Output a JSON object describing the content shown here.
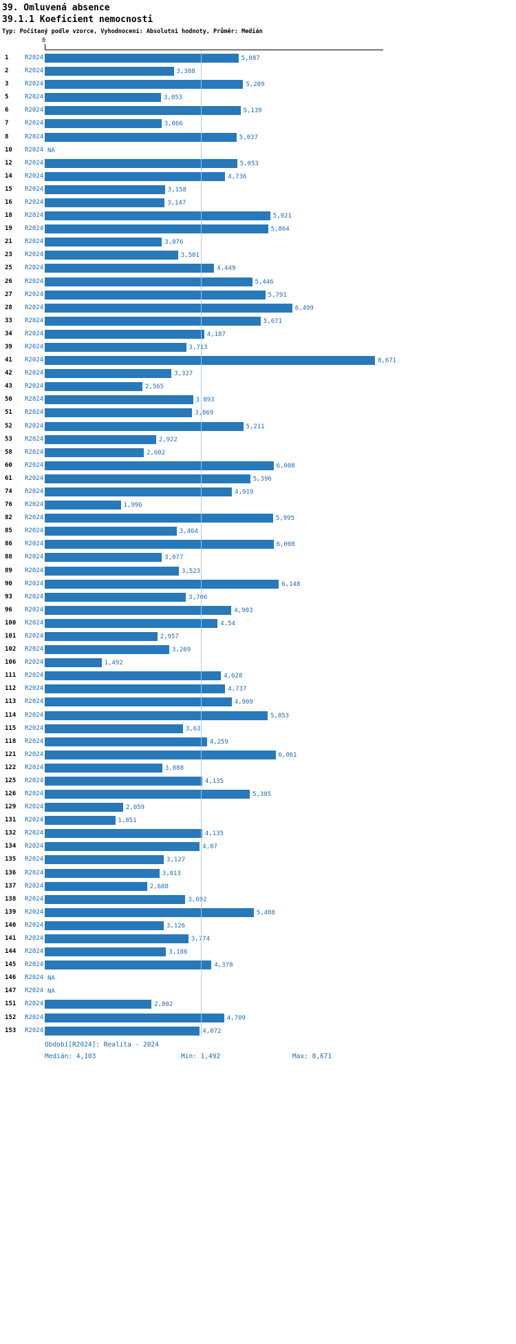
{
  "header": {
    "title": "39. Omluvená absence",
    "subtitle": "39.1.1 Koeficient nemocnosti",
    "meta": "Typ: Počítaný podle vzorce, Vyhodnocení: Absolutní hodnoty, Průměr: Medián"
  },
  "chart_data": {
    "type": "bar",
    "orientation": "horizontal",
    "title": "39.1.1 Koeficient nemocnosti",
    "series_label": "R2024",
    "x_axis_zero_label": "0",
    "xlim": [
      0,
      8.671
    ],
    "grid": false,
    "legend_position": "bottom",
    "median_line": 4.103,
    "bar_color": "#2779b9",
    "label_color": "#1a68b8",
    "median_line_color": "#a8cbe8",
    "categories": [
      "1",
      "2",
      "3",
      "5",
      "6",
      "7",
      "8",
      "10",
      "12",
      "14",
      "15",
      "16",
      "18",
      "19",
      "21",
      "23",
      "25",
      "26",
      "27",
      "28",
      "33",
      "34",
      "39",
      "41",
      "42",
      "43",
      "50",
      "51",
      "52",
      "53",
      "58",
      "60",
      "61",
      "74",
      "76",
      "82",
      "85",
      "86",
      "88",
      "89",
      "90",
      "93",
      "96",
      "100",
      "101",
      "102",
      "106",
      "111",
      "112",
      "113",
      "114",
      "115",
      "118",
      "121",
      "122",
      "125",
      "126",
      "129",
      "131",
      "132",
      "134",
      "135",
      "136",
      "137",
      "138",
      "139",
      "140",
      "141",
      "144",
      "145",
      "146",
      "147",
      "151",
      "152",
      "153"
    ],
    "values": [
      5.087,
      3.388,
      5.209,
      3.053,
      5.139,
      3.066,
      5.037,
      null,
      5.053,
      4.736,
      3.158,
      3.147,
      5.921,
      5.864,
      3.076,
      3.501,
      4.449,
      5.446,
      5.791,
      6.499,
      5.671,
      4.187,
      3.713,
      8.671,
      3.327,
      2.565,
      3.893,
      3.869,
      5.211,
      2.922,
      2.602,
      6.008,
      5.396,
      4.919,
      1.996,
      5.995,
      3.464,
      6.008,
      3.077,
      3.523,
      6.148,
      3.706,
      4.903,
      4.54,
      2.957,
      3.269,
      1.492,
      4.628,
      4.737,
      4.909,
      5.853,
      3.63,
      4.259,
      6.061,
      3.088,
      4.135,
      5.385,
      2.059,
      1.851,
      4.135,
      4.07,
      3.127,
      3.013,
      2.688,
      3.692,
      5.488,
      3.126,
      3.774,
      3.186,
      4.378,
      null,
      null,
      2.802,
      4.709,
      4.072
    ],
    "value_labels": [
      "5,087",
      "3,388",
      "5,209",
      "3,053",
      "5,139",
      "3,066",
      "5,037",
      "NA",
      "5,053",
      "4,736",
      "3,158",
      "3,147",
      "5,921",
      "5,864",
      "3,076",
      "3,501",
      "4,449",
      "5,446",
      "5,791",
      "6,499",
      "5,671",
      "4,187",
      "3,713",
      "8,671",
      "3,327",
      "2,565",
      "3,893",
      "3,869",
      "5,211",
      "2,922",
      "2,602",
      "6,008",
      "5,396",
      "4,919",
      "1,996",
      "5,995",
      "3,464",
      "6,008",
      "3,077",
      "3,523",
      "6,148",
      "3,706",
      "4,903",
      "4,54",
      "2,957",
      "3,269",
      "1,492",
      "4,628",
      "4,737",
      "4,909",
      "5,853",
      "3,63",
      "4,259",
      "6,061",
      "3,088",
      "4,135",
      "5,385",
      "2,059",
      "1,851",
      "4,135",
      "4,07",
      "3,127",
      "3,013",
      "2,688",
      "3,692",
      "5,488",
      "3,126",
      "3,774",
      "3,186",
      "4,378",
      "NA",
      "NA",
      "2,802",
      "4,709",
      "4,072"
    ],
    "stats": {
      "median": 4.103,
      "min": 1.492,
      "max": 8.671
    }
  },
  "footer": {
    "period": "Období[R2024]: Realita - 2024",
    "median": "Medián: 4,103",
    "min": "Min: 1,492",
    "max": "Max: 8,671"
  }
}
